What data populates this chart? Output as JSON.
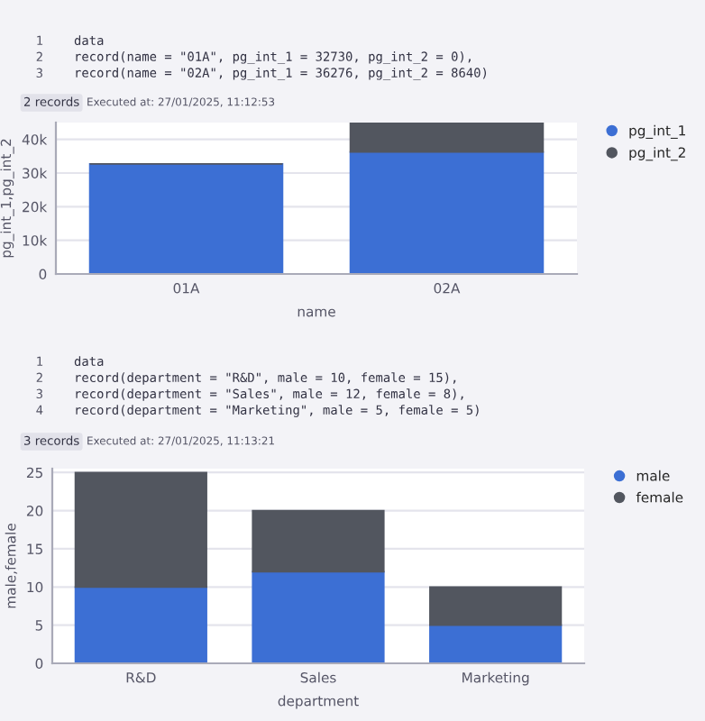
{
  "chart_data": [
    {
      "type": "bar",
      "stacked": true,
      "categories": [
        "01A",
        "02A"
      ],
      "series": [
        {
          "name": "pg_int_1",
          "color": "#3c6fd4",
          "values": [
            32730,
            36276
          ]
        },
        {
          "name": "pg_int_2",
          "color": "#52565f",
          "values": [
            0,
            8640
          ]
        }
      ],
      "xlabel": "name",
      "ylabel": "pg_int_1,pg_int_2",
      "ylim": [
        0,
        45000
      ],
      "yticks": [
        0,
        {
          "value": 10000,
          "label": "10k"
        },
        {
          "value": 20000,
          "label": "20k"
        },
        {
          "value": 30000,
          "label": "30k"
        },
        {
          "value": 40000,
          "label": "40k"
        }
      ],
      "grid": "y",
      "legend": "top right",
      "annotations": [
        "1",
        "data",
        "2",
        "record(name = \"01A\", pg_int_1 = 32730, pg_int_2 = 0),",
        "3",
        "record(name = \"02A\", pg_int_1 = 36276, pg_int_2 = 8640)",
        "2 records",
        "Executed at: 27/01/2025, 11:12:53"
      ]
    },
    {
      "type": "bar",
      "stacked": true,
      "categories": [
        "R&D",
        "Sales",
        "Marketing"
      ],
      "series": [
        {
          "name": "male",
          "color": "#3c6fd4",
          "values": [
            10,
            12,
            5
          ]
        },
        {
          "name": "female",
          "color": "#52565f",
          "values": [
            15,
            8,
            5
          ]
        }
      ],
      "xlabel": "department",
      "ylabel": "male,female",
      "ylim": [
        0,
        25.5
      ],
      "yticks": [
        0,
        5,
        10,
        15,
        20,
        25
      ],
      "grid": "y",
      "legend": "top right",
      "annotations": [
        "1",
        "data",
        "2",
        "record(department = \"R&D\", male = 10, female = 15),",
        "3",
        "record(department = \"Sales\", male = 12, female = 8),",
        "4",
        "record(department = \"Marketing\", male = 5, female = 5)",
        "3 records",
        "Executed at: 27/01/2025, 11:13:21"
      ]
    }
  ]
}
